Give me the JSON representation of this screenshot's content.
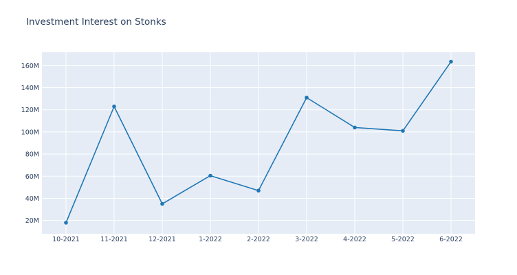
{
  "chart_data": {
    "type": "line",
    "title": "Investment Interest on Stonks",
    "xlabel": "",
    "ylabel": "",
    "categories": [
      "10-2021",
      "11-2021",
      "12-2021",
      "1-2022",
      "2-2022",
      "3-2022",
      "4-2022",
      "5-2022",
      "6-2022"
    ],
    "series": [
      {
        "values": [
          18000000,
          123000000,
          35000000,
          60500000,
          47000000,
          131000000,
          104000000,
          101000000,
          163500000
        ]
      }
    ],
    "y_ticks": [
      20000000,
      40000000,
      60000000,
      80000000,
      100000000,
      120000000,
      140000000,
      160000000
    ],
    "y_tick_labels": [
      "20M",
      "40M",
      "60M",
      "80M",
      "100M",
      "120M",
      "140M",
      "160M"
    ],
    "ylim": [
      8000000,
      172000000
    ],
    "grid": true,
    "legend": "none",
    "colors": {
      "line": "#1f77b4",
      "plot_bg": "#e5ecf6",
      "grid": "#ffffff",
      "text": "#2a3f5f"
    }
  }
}
